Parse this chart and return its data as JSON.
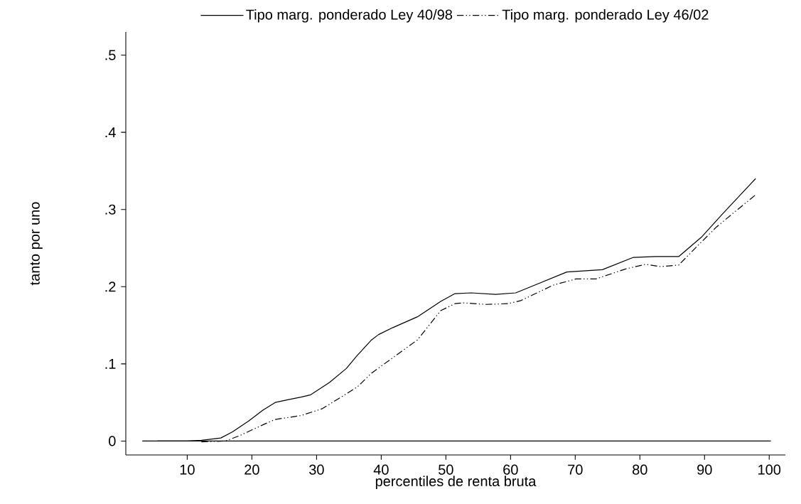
{
  "chart_data": {
    "type": "line",
    "xlabel": "percentiles de renta bruta",
    "ylabel": "tanto por uno",
    "xlim": [
      0.5,
      102.5
    ],
    "ylim": [
      -0.018,
      0.53
    ],
    "xticks": [
      10,
      20,
      30,
      40,
      50,
      60,
      70,
      80,
      90,
      100
    ],
    "yticks": [
      {
        "value": 0,
        "label": "0"
      },
      {
        "value": 0.1,
        "label": ".1"
      },
      {
        "value": 0.2,
        "label": ".2"
      },
      {
        "value": 0.3,
        "label": ".3"
      },
      {
        "value": 0.4,
        "label": ".4"
      },
      {
        "value": 0.5,
        "label": ".5"
      }
    ],
    "grid": false,
    "legend": "top",
    "marker": "none",
    "ref_lines": [
      {
        "axis": "y",
        "value": 0,
        "color": "#000000"
      }
    ],
    "series": [
      {
        "name": "Tipo marg. ponderado Ley 40/98",
        "color": "#000000",
        "line_style": "solid",
        "x": [
          5.4,
          10,
          12.2,
          15.2,
          17.0,
          19.5,
          21.7,
          23.6,
          25.8,
          27.6,
          29.1,
          32.0,
          34.6,
          36.3,
          38.5,
          39.6,
          41.8,
          45.6,
          49.2,
          51.4,
          53.9,
          57.7,
          60.8,
          64.3,
          68.7,
          74.2,
          79.0,
          82.4,
          86.0,
          89.5,
          93.3,
          97.9
        ],
        "values": [
          0,
          0,
          0.001,
          0.004,
          0.012,
          0.026,
          0.04,
          0.05,
          0.054,
          0.057,
          0.06,
          0.076,
          0.094,
          0.111,
          0.131,
          0.138,
          0.147,
          0.161,
          0.181,
          0.191,
          0.192,
          0.19,
          0.192,
          0.204,
          0.219,
          0.222,
          0.238,
          0.239,
          0.239,
          0.264,
          0.299,
          0.34
        ]
      },
      {
        "name": "Tipo marg. ponderado Ley 46/02",
        "color": "#000000",
        "line_style": "dashdotdot",
        "x": [
          12.2,
          15.9,
          18.1,
          21.7,
          23.6,
          27.6,
          30.9,
          36.3,
          38.5,
          41.8,
          45.6,
          49.2,
          51.4,
          52.7,
          56.2,
          59.6,
          61.6,
          66.6,
          70.1,
          73.2,
          77.8,
          80.9,
          83.2,
          86.0,
          88.7,
          91.8,
          94.1,
          97.9
        ],
        "values": [
          -0.001,
          0,
          0.007,
          0.021,
          0.028,
          0.033,
          0.042,
          0.07,
          0.088,
          0.108,
          0.131,
          0.169,
          0.178,
          0.179,
          0.177,
          0.178,
          0.182,
          0.202,
          0.21,
          0.21,
          0.223,
          0.229,
          0.226,
          0.228,
          0.251,
          0.277,
          0.293,
          0.319
        ]
      }
    ]
  }
}
